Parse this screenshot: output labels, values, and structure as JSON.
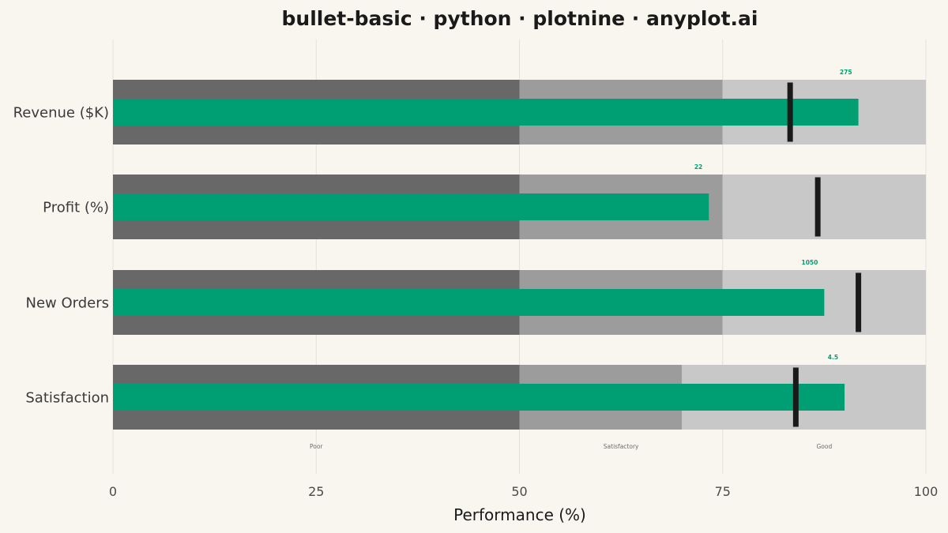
{
  "chart_data": {
    "type": "bullet",
    "title": "bullet-basic · python · plotnine · anyplot.ai",
    "xlabel": "Performance (%)",
    "ylabel": "",
    "xlim": [
      0,
      100
    ],
    "xticks": [
      0,
      25,
      50,
      75,
      100
    ],
    "grid": true,
    "categories": [
      "Revenue ($K)",
      "Profit (%)",
      "New Orders",
      "Satisfaction"
    ],
    "ranges": [
      [
        50,
        75,
        100
      ],
      [
        50,
        75,
        100
      ],
      [
        50,
        75,
        100
      ],
      [
        50,
        70,
        100
      ]
    ],
    "actual": [
      91.7,
      73.3,
      87.5,
      90.0
    ],
    "target": [
      83.3,
      86.7,
      91.7,
      84.0
    ],
    "actual_labels": [
      "275",
      "22",
      "1050",
      "4.5"
    ],
    "range_labels": [
      "Poor",
      "Satisfactory",
      "Good"
    ],
    "colors": {
      "background": "#F9F6F0",
      "band_poor": "#686868",
      "band_satisfactory": "#9C9C9C",
      "band_good": "#C8C8C8",
      "actual": "#009E73",
      "target": "#1A1A1A",
      "grid": "#E6E1D8"
    }
  }
}
